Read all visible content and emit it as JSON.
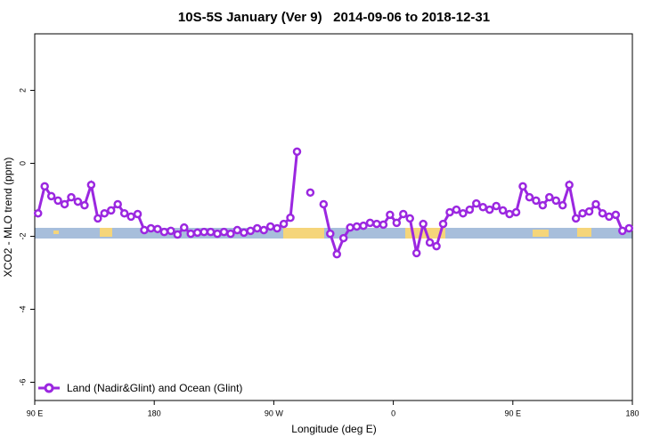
{
  "chart_data": {
    "type": "line",
    "title": "10S-5S January (Ver 9)   2014-09-06 to 2018-12-31",
    "x_label": "Longitude (deg E)",
    "y_label": "XCO2 - MLO trend (ppm)",
    "xlim": [
      90,
      540
    ],
    "xticks": [
      {
        "value": 90,
        "label": "90 E"
      },
      {
        "value": 180,
        "label": "180"
      },
      {
        "value": 270,
        "label": "90 W"
      },
      {
        "value": 360,
        "label": "0"
      },
      {
        "value": 450,
        "label": "90 E"
      },
      {
        "value": 540,
        "label": "180"
      }
    ],
    "ylim": [
      -6.5,
      3.55
    ],
    "yticks": [
      -6,
      -4,
      -2,
      0,
      2
    ],
    "legend": "bottom-left",
    "x": [
      92.5,
      97.5,
      102.5,
      107.5,
      112.5,
      117.5,
      122.5,
      127.5,
      132.5,
      137.5,
      142.5,
      147.5,
      152.5,
      157.5,
      162.5,
      167.5,
      172.5,
      177.5,
      182.5,
      187.5,
      192.5,
      197.5,
      202.5,
      207.5,
      212.5,
      217.5,
      222.5,
      227.5,
      232.5,
      237.5,
      242.5,
      247.5,
      252.5,
      257.5,
      262.5,
      267.5,
      272.5,
      277.5,
      282.5,
      287.5,
      292.5,
      297.5,
      302.5,
      307.5,
      312.5,
      317.5,
      322.5,
      327.5,
      332.5,
      337.5,
      342.5,
      347.5,
      352.5,
      357.5,
      362.5,
      367.5,
      372.5,
      377.5,
      382.5,
      387.5,
      392.5,
      397.5,
      402.5,
      407.5,
      412.5,
      417.5,
      422.5,
      427.5,
      432.5,
      437.5,
      442.5,
      447.5,
      452.5,
      457.5,
      462.5,
      467.5,
      472.5,
      477.5,
      482.5,
      487.5,
      492.5,
      497.5,
      502.5,
      507.5,
      512.5,
      517.5,
      522.5,
      527.5,
      532.5,
      537.5
    ],
    "series": [
      {
        "name": "Land (Nadir&Glint) and Ocean (Glint)",
        "color": "#9b27e0",
        "values": [
          -1.37,
          -0.63,
          -0.9,
          -1.02,
          -1.12,
          -0.93,
          -1.05,
          -1.15,
          -0.59,
          -1.51,
          -1.37,
          -1.29,
          -1.12,
          -1.37,
          -1.46,
          -1.39,
          -1.83,
          -1.78,
          -1.8,
          -1.88,
          -1.85,
          -1.95,
          -1.76,
          -1.93,
          -1.9,
          -1.88,
          -1.88,
          -1.93,
          -1.88,
          -1.93,
          -1.83,
          -1.9,
          -1.85,
          -1.78,
          -1.83,
          -1.73,
          -1.78,
          -1.66,
          -1.49,
          0.32,
          null,
          -0.8,
          null,
          -1.12,
          -1.93,
          -2.49,
          -2.05,
          -1.76,
          -1.73,
          -1.71,
          -1.63,
          -1.66,
          -1.68,
          -1.41,
          -1.63,
          -1.39,
          -1.51,
          -2.46,
          -1.66,
          -2.17,
          -2.27,
          -1.66,
          -1.34,
          -1.27,
          -1.37,
          -1.27,
          -1.1,
          -1.2,
          -1.27,
          -1.17,
          -1.29,
          -1.39,
          -1.34,
          -0.63,
          -0.93,
          -1.02,
          -1.15,
          -0.93,
          -1.02,
          -1.15,
          -0.59,
          -1.51,
          -1.37,
          -1.32,
          -1.12,
          -1.37,
          -1.46,
          -1.41,
          -1.85,
          -1.78
        ]
      }
    ]
  }
}
